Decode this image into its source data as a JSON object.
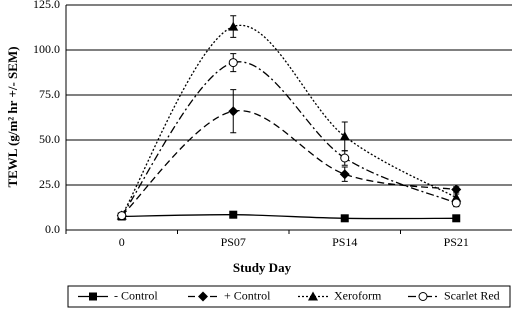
{
  "chart_data": {
    "type": "line",
    "x_label": "Study Day",
    "y_label": "TEWL (g/m² hr +/- SEM)",
    "categories": [
      "0",
      "PS07",
      "PS14",
      "PS21"
    ],
    "ylim": [
      0,
      125
    ],
    "yticks": [
      {
        "value": 0,
        "label": "0.0"
      },
      {
        "value": 25,
        "label": "25.0"
      },
      {
        "value": 50,
        "label": "50.0"
      },
      {
        "value": 75,
        "label": "75.0"
      },
      {
        "value": 100,
        "label": "100.0"
      },
      {
        "value": 125,
        "label": "125.0"
      }
    ],
    "grid": true,
    "series": [
      {
        "name": "- Control",
        "color": "#000000",
        "marker": "square",
        "dash": "solid",
        "values": [
          7.5,
          8.5,
          6.5,
          6.5
        ],
        "errors": [
          0.5,
          0.8,
          0.5,
          0.5
        ]
      },
      {
        "name": "+ Control",
        "color": "#000000",
        "marker": "diamond",
        "dash": "dashed",
        "values": [
          8,
          66,
          31,
          22.5
        ],
        "errors": [
          1,
          12,
          4,
          1.5
        ]
      },
      {
        "name": "Xeroform",
        "color": "#000000",
        "marker": "triangle",
        "dash": "dotted",
        "values": [
          8,
          113,
          52,
          18
        ],
        "errors": [
          1,
          6,
          8,
          2
        ]
      },
      {
        "name": "Scarlet Red",
        "color": "#000000",
        "marker": "open-circle",
        "dash": "dashdot",
        "values": [
          8,
          93,
          40,
          15
        ],
        "errors": [
          1,
          5,
          4,
          2
        ]
      }
    ]
  }
}
